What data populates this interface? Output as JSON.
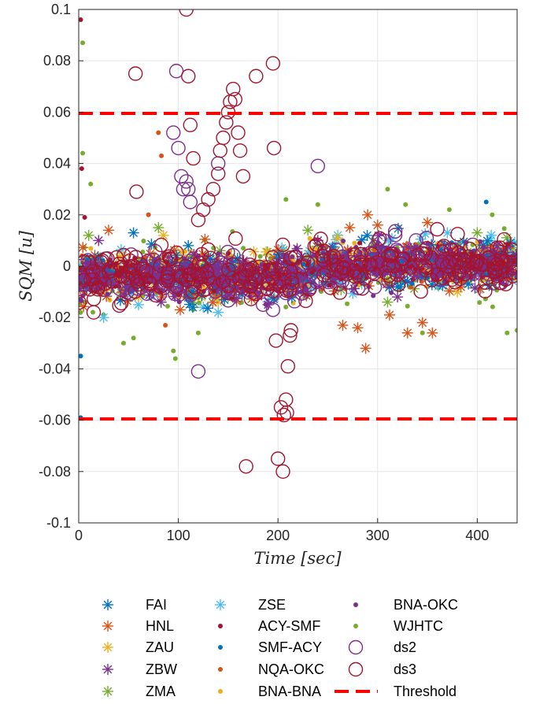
{
  "chart_data": {
    "type": "scatter",
    "xlabel": "Time [sec]",
    "ylabel": "SQM [u]",
    "xlim": [
      0,
      440
    ],
    "ylim": [
      -0.1,
      0.1
    ],
    "xticks": [
      0,
      100,
      200,
      300,
      400
    ],
    "xtick_labels": [
      "0",
      "100",
      "200",
      "300",
      "400"
    ],
    "yticks": [
      -0.1,
      -0.08,
      -0.06,
      -0.04,
      -0.02,
      0,
      0.02,
      0.04,
      0.06,
      0.08,
      0.1
    ],
    "ytick_labels": [
      "-0.1",
      "-0.08",
      "-0.06",
      "-0.04",
      "-0.02",
      "0",
      "0.02",
      "0.04",
      "0.06",
      "0.08",
      "0.1"
    ],
    "grid": true,
    "legend_position": "below",
    "series": [
      {
        "name": "FAI",
        "marker": "asterisk",
        "color": "#0072BD",
        "points": [
          [
            55,
            0.013
          ],
          [
            110,
            0.008
          ],
          [
            180,
            -0.005
          ],
          [
            250,
            0.004
          ],
          [
            330,
            -0.006
          ],
          [
            409,
            0.003
          ]
        ],
        "spread": 0.009
      },
      {
        "name": "HNL",
        "marker": "asterisk",
        "color": "#D95319",
        "points": [
          [
            30,
            0.014
          ],
          [
            265,
            -0.023
          ],
          [
            280,
            -0.024
          ],
          [
            288,
            -0.032
          ],
          [
            290,
            0.02
          ],
          [
            300,
            0.016
          ],
          [
            330,
            -0.026
          ],
          [
            345,
            -0.022
          ],
          [
            350,
            0.017
          ],
          [
            355,
            -0.026
          ],
          [
            272,
            0.015
          ],
          [
            312,
            -0.019
          ]
        ],
        "spread": 0.009
      },
      {
        "name": "ZAU",
        "marker": "asterisk",
        "color": "#EDB120",
        "points": [
          [
            60,
            -0.012
          ],
          [
            85,
            0.012
          ],
          [
            140,
            -0.014
          ],
          [
            260,
            0.011
          ],
          [
            380,
            -0.01
          ]
        ],
        "spread": 0.007
      },
      {
        "name": "ZBW",
        "marker": "asterisk",
        "color": "#7E2F8E",
        "points": [
          [
            20,
            0.01
          ],
          [
            100,
            -0.01
          ],
          [
            190,
            -0.015
          ],
          [
            240,
            0.01
          ],
          [
            320,
            -0.012
          ],
          [
            420,
            0.008
          ]
        ],
        "spread": 0.007
      },
      {
        "name": "ZMA",
        "marker": "asterisk",
        "color": "#77AC30",
        "points": [
          [
            10,
            0.012
          ],
          [
            80,
            0.015
          ],
          [
            150,
            -0.012
          ],
          [
            230,
            0.014
          ],
          [
            310,
            -0.014
          ],
          [
            400,
            0.013
          ]
        ],
        "spread": 0.008
      },
      {
        "name": "ZSE",
        "marker": "asterisk",
        "color": "#4DBEEE",
        "points": [
          [
            25,
            -0.02
          ],
          [
            60,
            -0.015
          ],
          [
            125,
            -0.016
          ],
          [
            140,
            -0.018
          ],
          [
            260,
            0.012
          ],
          [
            370,
            0.013
          ],
          [
            414,
            0.012
          ]
        ],
        "spread": 0.009
      },
      {
        "name": "ACY-SMF",
        "marker": "dot",
        "color": "#A2142F",
        "points": [
          [
            2,
            0.096
          ],
          [
            3,
            0.038
          ],
          [
            6,
            0.019
          ],
          [
            60,
            -0.005
          ],
          [
            150,
            0.005
          ],
          [
            300,
            0.005
          ]
        ],
        "spread": 0.006
      },
      {
        "name": "SMF-ACY",
        "marker": "dot",
        "color": "#0072BD",
        "points": [
          [
            2,
            -0.035
          ],
          [
            2,
            -0.059
          ],
          [
            409,
            0.025
          ],
          [
            200,
            0.002
          ],
          [
            350,
            -0.003
          ]
        ],
        "spread": 0.006
      },
      {
        "name": "NQA-OKC",
        "marker": "dot",
        "color": "#D95319",
        "points": [
          [
            80,
            0.052
          ],
          [
            83,
            0.043
          ],
          [
            87,
            -0.023
          ],
          [
            70,
            0.02
          ],
          [
            150,
            -0.01
          ],
          [
            300,
            0.003
          ]
        ],
        "spread": 0.008
      },
      {
        "name": "BNA-BNA",
        "marker": "dot",
        "color": "#EDB120",
        "points": [
          [
            50,
            0.002
          ],
          [
            150,
            -0.004
          ],
          [
            250,
            0.003
          ],
          [
            350,
            -0.002
          ]
        ],
        "spread": 0.008
      },
      {
        "name": "BNA-OKC",
        "marker": "dot",
        "color": "#7E2F8E",
        "points": [
          [
            20,
            -0.003
          ],
          [
            120,
            0.004
          ],
          [
            220,
            -0.005
          ],
          [
            320,
            0.002
          ],
          [
            420,
            -0.004
          ]
        ],
        "spread": 0.009
      },
      {
        "name": "WJHTC",
        "marker": "dot",
        "color": "#77AC30",
        "points": [
          [
            4,
            0.087
          ],
          [
            4,
            0.044
          ],
          [
            12,
            0.032
          ],
          [
            45,
            -0.03
          ],
          [
            55,
            -0.028
          ],
          [
            95,
            -0.033
          ],
          [
            97,
            -0.036
          ],
          [
            120,
            -0.026
          ],
          [
            208,
            0.026
          ],
          [
            240,
            0.024
          ],
          [
            310,
            0.03
          ],
          [
            328,
            0.024
          ],
          [
            345,
            -0.026
          ],
          [
            372,
            0.022
          ],
          [
            415,
            0.02
          ],
          [
            430,
            -0.026
          ],
          [
            440,
            -0.025
          ]
        ],
        "spread": 0.012
      },
      {
        "name": "ds2",
        "marker": "circle",
        "color": "#7E2F8E",
        "points": [
          [
            95,
            0.052
          ],
          [
            98,
            0.076
          ],
          [
            100,
            0.046
          ],
          [
            103,
            0.035
          ],
          [
            105,
            0.03
          ],
          [
            108,
            0.033
          ],
          [
            110,
            0.03
          ],
          [
            112,
            0.025
          ],
          [
            120,
            -0.041
          ],
          [
            140,
            0.04
          ],
          [
            185,
            -0.015
          ],
          [
            195,
            -0.017
          ],
          [
            240,
            0.039
          ]
        ],
        "spread": 0.008
      },
      {
        "name": "ds3",
        "marker": "circle",
        "color": "#A2142F",
        "points": [
          [
            15,
            -0.018
          ],
          [
            57,
            0.075
          ],
          [
            58,
            0.029
          ],
          [
            108,
            0.1
          ],
          [
            110,
            0.074
          ],
          [
            112,
            0.055
          ],
          [
            115,
            0.042
          ],
          [
            120,
            0.018
          ],
          [
            125,
            0.022
          ],
          [
            130,
            0.026
          ],
          [
            135,
            0.03
          ],
          [
            140,
            0.036
          ],
          [
            142,
            0.045
          ],
          [
            145,
            0.05
          ],
          [
            148,
            0.056
          ],
          [
            150,
            0.06
          ],
          [
            152,
            0.064
          ],
          [
            155,
            0.069
          ],
          [
            157,
            0.065
          ],
          [
            160,
            0.052
          ],
          [
            162,
            0.045
          ],
          [
            165,
            0.035
          ],
          [
            168,
            -0.078
          ],
          [
            178,
            0.074
          ],
          [
            195,
            0.079
          ],
          [
            196,
            0.046
          ],
          [
            198,
            -0.029
          ],
          [
            200,
            -0.075
          ],
          [
            203,
            -0.055
          ],
          [
            205,
            -0.08
          ],
          [
            206,
            -0.058
          ],
          [
            208,
            -0.052
          ],
          [
            209,
            -0.057
          ],
          [
            210,
            -0.039
          ],
          [
            212,
            -0.027
          ],
          [
            213,
            -0.025
          ]
        ],
        "spread": 0.009
      },
      {
        "name": "Threshold",
        "marker": "dashed-line",
        "color": "#FF0000",
        "values": [
          0.0595,
          -0.0595
        ]
      }
    ]
  }
}
